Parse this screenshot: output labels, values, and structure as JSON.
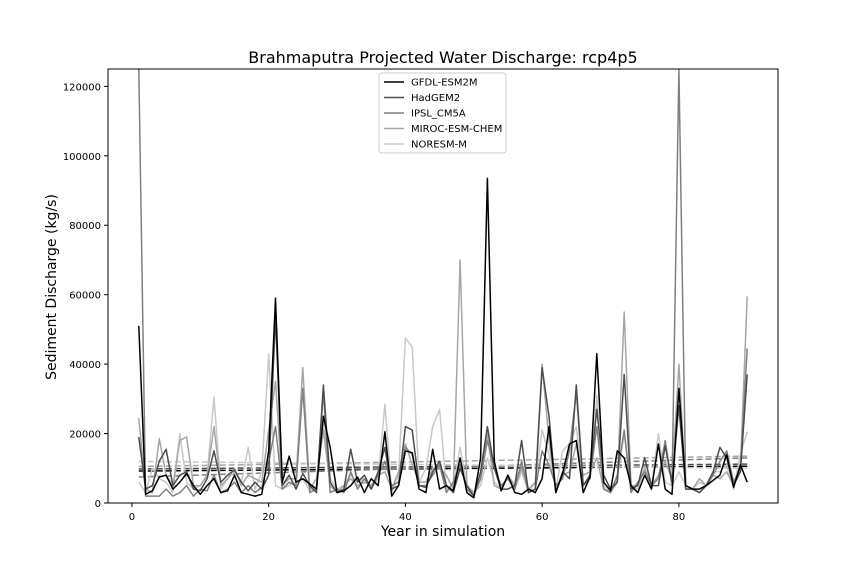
{
  "chart_data": {
    "type": "line",
    "title": "Brahmaputra Projected Water Discharge: rcp4p5",
    "xlabel": "Year in simulation",
    "ylabel": "Sediment Discharge (kg/s)",
    "xlim": [
      -3.5,
      94.5
    ],
    "ylim": [
      0,
      125000
    ],
    "x_ticks": [
      0,
      20,
      40,
      60,
      80
    ],
    "y_ticks": [
      0,
      20000,
      40000,
      60000,
      80000,
      100000,
      120000
    ],
    "legend_position": "upper center",
    "grid": false,
    "x": [
      1,
      2,
      3,
      4,
      5,
      6,
      7,
      8,
      9,
      10,
      11,
      12,
      13,
      14,
      15,
      16,
      17,
      18,
      19,
      20,
      21,
      22,
      23,
      24,
      25,
      26,
      27,
      28,
      29,
      30,
      31,
      32,
      33,
      34,
      35,
      36,
      37,
      38,
      39,
      40,
      41,
      42,
      43,
      44,
      45,
      46,
      47,
      48,
      49,
      50,
      51,
      52,
      53,
      54,
      55,
      56,
      57,
      58,
      59,
      60,
      61,
      62,
      63,
      64,
      65,
      66,
      67,
      68,
      69,
      70,
      71,
      72,
      73,
      74,
      75,
      76,
      77,
      78,
      79,
      80,
      81,
      82,
      83,
      84,
      85,
      86,
      87,
      88,
      89,
      90
    ],
    "series": [
      {
        "name": "GFDL-ESM2M",
        "color": "#000000",
        "values": [
          51000,
          2500,
          3500,
          7500,
          8000,
          4000,
          6000,
          8500,
          5000,
          2500,
          5000,
          7000,
          3000,
          3500,
          8000,
          3000,
          2500,
          2000,
          2500,
          15000,
          59000,
          6000,
          13500,
          6000,
          7000,
          5500,
          4000,
          25000,
          16000,
          3000,
          3500,
          5000,
          7500,
          3000,
          7000,
          5000,
          20500,
          2000,
          5000,
          15000,
          14500,
          4000,
          3000,
          15500,
          4000,
          5000,
          3500,
          13000,
          3000,
          1500,
          13000,
          93500,
          12000,
          3500,
          8000,
          3000,
          2500,
          4000,
          3000,
          7000,
          22000,
          3000,
          8500,
          17000,
          18000,
          3000,
          7500,
          43000,
          6000,
          3500,
          15000,
          13000,
          5000,
          3000,
          8000,
          4000,
          17000,
          4000,
          2500,
          33000,
          5000,
          4000,
          4000,
          5000,
          6500,
          8000,
          14000,
          4500,
          11000,
          6000
        ],
        "trend": [
          9200,
          10600
        ]
      },
      {
        "name": "HadGEM2",
        "color": "#4d4d4d",
        "values": [
          19000,
          4000,
          5000,
          12000,
          15500,
          5000,
          8000,
          9000,
          4000,
          3500,
          7000,
          15000,
          6000,
          8000,
          9500,
          6000,
          3500,
          6000,
          4000,
          8000,
          54000,
          5000,
          8000,
          4000,
          8500,
          5000,
          3000,
          34000,
          6000,
          3000,
          4000,
          15500,
          6000,
          8000,
          4000,
          9000,
          16000,
          4000,
          5000,
          22000,
          21000,
          5000,
          4500,
          9000,
          12000,
          5000,
          3000,
          10000,
          5000,
          2000,
          9000,
          22000,
          10000,
          4000,
          4000,
          5000,
          18000,
          3000,
          4000,
          39000,
          25000,
          3000,
          9000,
          7000,
          34000,
          5000,
          8000,
          27000,
          8000,
          4000,
          6000,
          37000,
          4000,
          5000,
          13000,
          5000,
          5000,
          16500,
          6000,
          28000,
          4000,
          4000,
          3000,
          5000,
          9000,
          16000,
          13000,
          5000,
          9000,
          37000
        ],
        "trend": [
          9800,
          11200
        ]
      },
      {
        "name": "IPSL_CM5A",
        "color": "#808080",
        "values": [
          125000,
          2000,
          2000,
          2000,
          4000,
          2000,
          3000,
          5000,
          2000,
          4000,
          3500,
          8000,
          3000,
          4000,
          6000,
          3000,
          5000,
          3000,
          4500,
          12000,
          22000,
          4000,
          6000,
          5000,
          33000,
          3000,
          4000,
          32000,
          3000,
          4000,
          3000,
          9000,
          4000,
          7000,
          4000,
          8000,
          12000,
          5000,
          6000,
          16000,
          14000,
          5000,
          5000,
          8000,
          11000,
          3000,
          6000,
          11000,
          4000,
          2000,
          7000,
          18000,
          10000,
          5000,
          7000,
          4000,
          12000,
          3000,
          4000,
          15000,
          11000,
          5000,
          7000,
          15000,
          32000,
          5000,
          7000,
          22000,
          4000,
          3000,
          8000,
          21000,
          3000,
          6000,
          9000,
          5000,
          7000,
          18000,
          5000,
          125000,
          5000,
          4000,
          3000,
          5000,
          8000,
          12000,
          15000,
          6000,
          10000,
          44500
        ],
        "trend": [
          7500,
          13000
        ]
      },
      {
        "name": "MIROC-ESM-CHEM",
        "color": "#a6a6a6",
        "values": [
          24500,
          4000,
          3000,
          18500,
          8000,
          5000,
          18000,
          19000,
          5000,
          5000,
          8000,
          22000,
          5000,
          7000,
          10000,
          5000,
          8000,
          7000,
          6000,
          21000,
          35000,
          5000,
          7000,
          7000,
          39000,
          4000,
          7000,
          21000,
          5000,
          3000,
          5000,
          7000,
          5000,
          6000,
          5000,
          8000,
          9000,
          4000,
          9000,
          17000,
          11000,
          6000,
          6000,
          10000,
          10000,
          8000,
          4000,
          70000,
          5000,
          3000,
          7000,
          20000,
          5000,
          4000,
          8000,
          5000,
          10000,
          4000,
          6000,
          40000,
          18000,
          4000,
          8000,
          9000,
          17000,
          8000,
          9000,
          13000,
          4000,
          3000,
          6000,
          55000,
          5000,
          5000,
          10000,
          5000,
          8000,
          12000,
          7000,
          40000,
          4000,
          4000,
          7000,
          5000,
          8000,
          7000,
          9000,
          5000,
          10000,
          59500
        ],
        "trend": [
          10500,
          13500
        ]
      },
      {
        "name": "NORESM-M",
        "color": "#c8c8c8",
        "values": [
          6000,
          3000,
          10000,
          7000,
          6000,
          3000,
          20000,
          6000,
          4000,
          5000,
          8000,
          30500,
          4000,
          7000,
          9000,
          6000,
          16000,
          4000,
          9000,
          43000,
          5000,
          4000,
          5000,
          6000,
          7000,
          3500,
          5000,
          23000,
          7000,
          4000,
          5000,
          8000,
          6000,
          7000,
          4000,
          7000,
          28500,
          3000,
          8000,
          47500,
          45000,
          6000,
          10000,
          22000,
          27000,
          4000,
          5000,
          16000,
          5000,
          3000,
          5000,
          13000,
          6000,
          4000,
          8000,
          4000,
          9000,
          3000,
          6000,
          21000,
          14000,
          4000,
          15000,
          17000,
          22000,
          5000,
          8000,
          31000,
          5000,
          3000,
          7000,
          20000,
          5000,
          4000,
          10000,
          5000,
          20000,
          6000,
          5000,
          9000,
          5000,
          4000,
          6000,
          5000,
          9000,
          9000,
          11000,
          4000,
          14000,
          20500
        ],
        "trend": [
          12000,
          10000
        ]
      }
    ]
  }
}
